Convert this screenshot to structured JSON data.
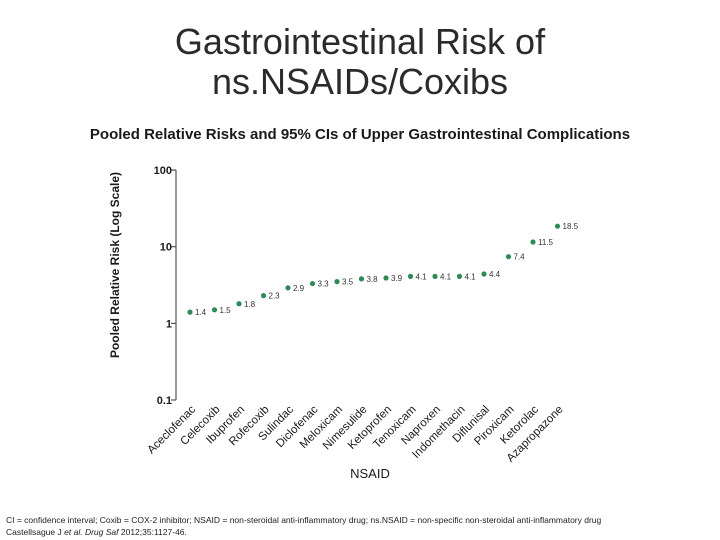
{
  "title_line1": "Gastrointestinal Risk of",
  "title_line2": "ns.NSAIDs/Coxibs",
  "chart_data": {
    "type": "scatter",
    "title": "Pooled Relative Risks and 95% CIs of Upper Gastrointestinal Complications",
    "xlabel": "NSAID",
    "ylabel": "Pooled Relative Risk (Log Scale)",
    "yscale": "log",
    "ylim": [
      0.1,
      100
    ],
    "yticks": [
      0.1,
      1,
      10,
      100
    ],
    "ytick_labels": [
      "0.1",
      "1",
      "10",
      "100"
    ],
    "categories": [
      "Aceclofenac",
      "Celecoxib",
      "Ibuprofen",
      "Rofecoxib",
      "Sulindac",
      "Diclofenac",
      "Meloxicam",
      "Nimesulide",
      "Ketoprofen",
      "Tenoxicam",
      "Naproxen",
      "Indomethacin",
      "Diflunisal",
      "Piroxicam",
      "Ketorolac",
      "Azapropazone"
    ],
    "values": [
      1.4,
      1.5,
      1.8,
      2.3,
      2.9,
      3.3,
      3.5,
      3.8,
      3.9,
      4.1,
      4.1,
      4.1,
      4.4,
      7.4,
      11.5,
      18.5
    ],
    "value_labels": [
      "1.4",
      "1.5",
      "1.8",
      "2.3",
      "2.9",
      "3.3",
      "3.5",
      "3.8",
      "3.9",
      "4.1",
      "4.1",
      "4.1",
      "4.4",
      "7.4",
      "11.5",
      "18.5"
    ],
    "color": "#2e8b57",
    "grid": false,
    "legend": "none"
  },
  "footnote": {
    "text": "CI = confidence interval; Coxib = COX-2 inhibitor; NSAID = non-steroidal anti-inflammatory drug; ns.NSAID = non-specific  non-steroidal anti-inflammatory drug",
    "citation_authors": "Castellsague J",
    "citation_etal": "et al.",
    "citation_journal": "Drug Saf",
    "citation_rest": "2012;35:1127-46."
  }
}
